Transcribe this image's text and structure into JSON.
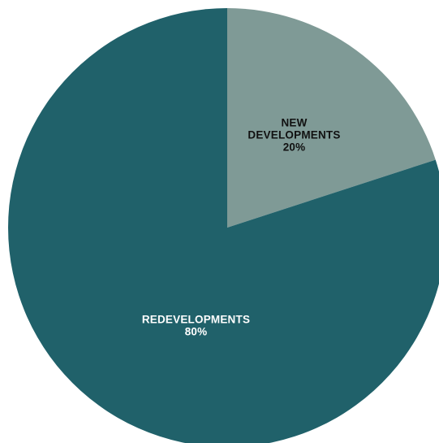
{
  "chart_data": {
    "type": "pie",
    "title": "",
    "slices": [
      {
        "label": "NEW DEVELOPMENTS",
        "label_lines": [
          "NEW",
          "DEVELOPMENTS"
        ],
        "value": 20,
        "value_label": "20%",
        "color": "#7f9a96",
        "text_color": "#111111"
      },
      {
        "label": "REDEVELOPMENTS",
        "label_lines": [
          "REDEVELOPMENTS"
        ],
        "value": 80,
        "value_label": "80%",
        "color": "#20616a",
        "text_color": "#ffffff"
      }
    ],
    "start_angle": "12 o'clock",
    "direction": "clockwise",
    "legend": "none"
  }
}
